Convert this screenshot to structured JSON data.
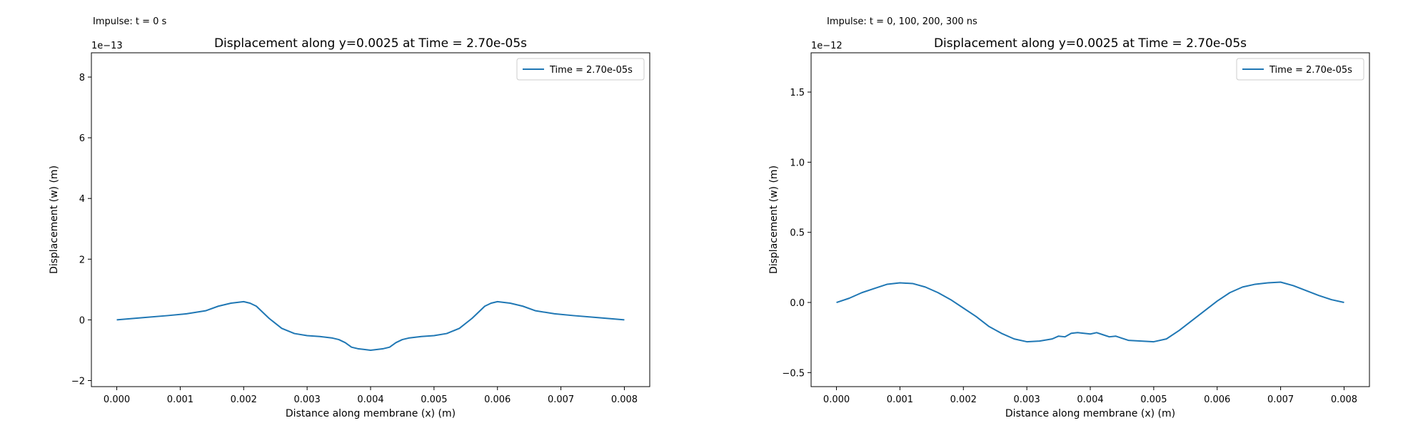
{
  "chart_data": [
    {
      "type": "line",
      "annotation": "Impulse: t = 0 s",
      "title": "Displacement along y=0.0025 at Time = 2.70e-05s",
      "xlabel": "Distance along membrane (x) (m)",
      "ylabel": "Displacement (w) (m)",
      "offset_text": "1e−13",
      "scale": 1e-13,
      "xlim": [
        -0.0004,
        0.0084
      ],
      "ylim": [
        -2.2,
        8.8
      ],
      "xticks": [
        0.0,
        0.001,
        0.002,
        0.003,
        0.004,
        0.005,
        0.006,
        0.007,
        0.008
      ],
      "xtick_labels": [
        "0.000",
        "0.001",
        "0.002",
        "0.003",
        "0.004",
        "0.005",
        "0.006",
        "0.007",
        "0.008"
      ],
      "yticks": [
        -2,
        0,
        2,
        4,
        6,
        8
      ],
      "ytick_labels": [
        "−2",
        "0",
        "2",
        "4",
        "6",
        "8"
      ],
      "legend": "Time = 2.70e-05s",
      "legend_loc": "top-right",
      "color": "#1f77b4",
      "series": [
        {
          "name": "Time = 2.70e-05s",
          "x": [
            0.0,
            0.0004,
            0.0008,
            0.0011,
            0.0014,
            0.0016,
            0.0018,
            0.002,
            0.0021,
            0.0022,
            0.0024,
            0.0026,
            0.0028,
            0.003,
            0.0032,
            0.0034,
            0.0035,
            0.0036,
            0.0037,
            0.0038,
            0.004,
            0.0042,
            0.0043,
            0.0044,
            0.0045,
            0.0046,
            0.0048,
            0.005,
            0.0052,
            0.0054,
            0.0056,
            0.0058,
            0.0059,
            0.006,
            0.0062,
            0.0064,
            0.0066,
            0.0069,
            0.0072,
            0.0076,
            0.008
          ],
          "y": [
            0.0,
            0.07,
            0.14,
            0.2,
            0.3,
            0.45,
            0.55,
            0.6,
            0.55,
            0.45,
            0.05,
            -0.28,
            -0.45,
            -0.52,
            -0.55,
            -0.6,
            -0.65,
            -0.75,
            -0.9,
            -0.95,
            -1.0,
            -0.95,
            -0.9,
            -0.75,
            -0.65,
            -0.6,
            -0.55,
            -0.52,
            -0.45,
            -0.28,
            0.05,
            0.45,
            0.55,
            0.6,
            0.55,
            0.45,
            0.3,
            0.2,
            0.14,
            0.07,
            0.0
          ]
        }
      ]
    },
    {
      "type": "line",
      "annotation": "Impulse: t = 0, 100, 200, 300 ns",
      "title": "Displacement along y=0.0025 at Time = 2.70e-05s",
      "xlabel": "Distance along membrane (x) (m)",
      "ylabel": "Displacement (w) (m)",
      "offset_text": "1e−12",
      "scale": 1e-12,
      "xlim": [
        -0.0004,
        0.0084
      ],
      "ylim": [
        -0.6,
        1.78
      ],
      "xticks": [
        0.0,
        0.001,
        0.002,
        0.003,
        0.004,
        0.005,
        0.006,
        0.007,
        0.008
      ],
      "xtick_labels": [
        "0.000",
        "0.001",
        "0.002",
        "0.003",
        "0.004",
        "0.005",
        "0.006",
        "0.007",
        "0.008"
      ],
      "yticks": [
        -0.5,
        0.0,
        0.5,
        1.0,
        1.5
      ],
      "ytick_labels": [
        "−0.5",
        "0.0",
        "0.5",
        "1.0",
        "1.5"
      ],
      "legend": "Time = 2.70e-05s",
      "legend_loc": "top-right",
      "color": "#1f77b4",
      "series": [
        {
          "name": "Time = 2.70e-05s",
          "x": [
            0.0,
            0.0002,
            0.0004,
            0.0006,
            0.0008,
            0.001,
            0.0012,
            0.0014,
            0.0016,
            0.0018,
            0.002,
            0.0022,
            0.0024,
            0.0026,
            0.0028,
            0.003,
            0.0032,
            0.0034,
            0.0035,
            0.0036,
            0.0037,
            0.0038,
            0.0039,
            0.004,
            0.0041,
            0.0042,
            0.0043,
            0.0044,
            0.0045,
            0.0046,
            0.0048,
            0.005,
            0.0052,
            0.0054,
            0.0056,
            0.0058,
            0.006,
            0.0062,
            0.0064,
            0.0066,
            0.0068,
            0.007,
            0.0072,
            0.0074,
            0.0076,
            0.0078,
            0.008
          ],
          "y": [
            0.0,
            0.03,
            0.07,
            0.1,
            0.13,
            0.14,
            0.135,
            0.11,
            0.07,
            0.02,
            -0.04,
            -0.1,
            -0.17,
            -0.22,
            -0.26,
            -0.28,
            -0.275,
            -0.26,
            -0.24,
            -0.245,
            -0.22,
            -0.215,
            -0.22,
            -0.225,
            -0.215,
            -0.23,
            -0.245,
            -0.24,
            -0.255,
            -0.27,
            -0.275,
            -0.28,
            -0.26,
            -0.2,
            -0.13,
            -0.06,
            0.01,
            0.07,
            0.11,
            0.13,
            0.14,
            0.145,
            0.12,
            0.085,
            0.05,
            0.02,
            0.0
          ]
        }
      ]
    }
  ]
}
